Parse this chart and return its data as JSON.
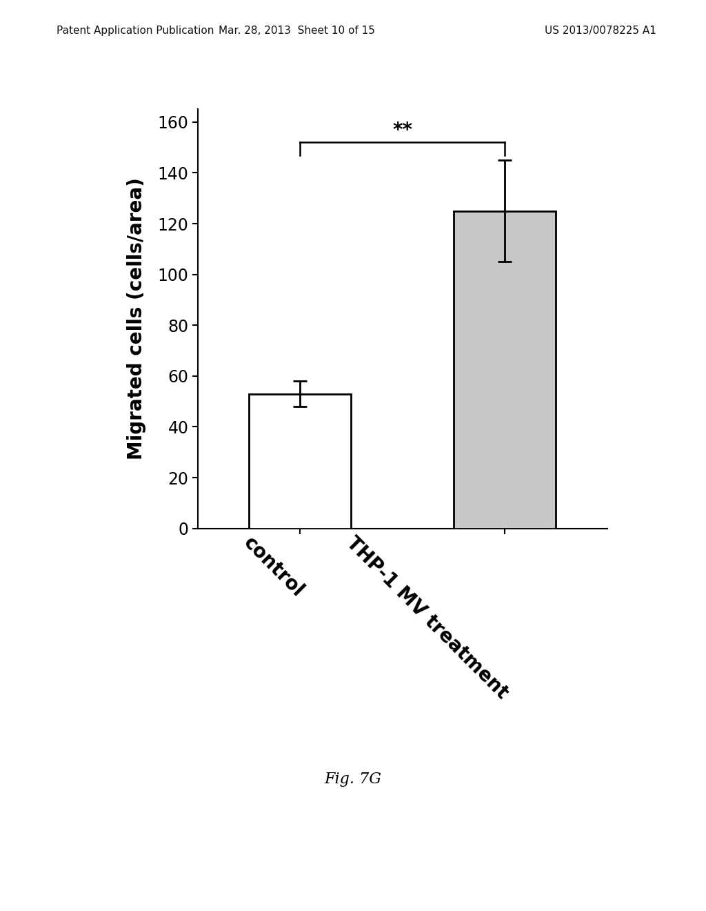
{
  "categories": [
    "control",
    "THP-1 MV treatment"
  ],
  "values": [
    53,
    125
  ],
  "errors": [
    5,
    20
  ],
  "bar_colors": [
    "#ffffff",
    "#c8c8c8"
  ],
  "bar_edgecolors": [
    "#000000",
    "#000000"
  ],
  "bar_linewidth": 2.0,
  "ylabel": "Migrated cells (cells/area)",
  "ylim": [
    0,
    165
  ],
  "yticks": [
    0,
    20,
    40,
    60,
    80,
    100,
    120,
    140,
    160
  ],
  "significance_text": "**",
  "bar_width": 0.5,
  "bar_positions": [
    0,
    1
  ],
  "xlabel_rotation": -45,
  "xlabel_fontsize": 20,
  "ylabel_fontsize": 20,
  "tick_fontsize": 17,
  "sig_fontsize": 20,
  "fig_caption": "Fig. 7G",
  "fig_caption_fontsize": 16,
  "background_color": "#ffffff",
  "header_left": "Patent Application Publication",
  "header_mid": "Mar. 28, 2013  Sheet 10 of 15",
  "header_right": "US 2013/0078225 A1",
  "header_fontsize": 11
}
